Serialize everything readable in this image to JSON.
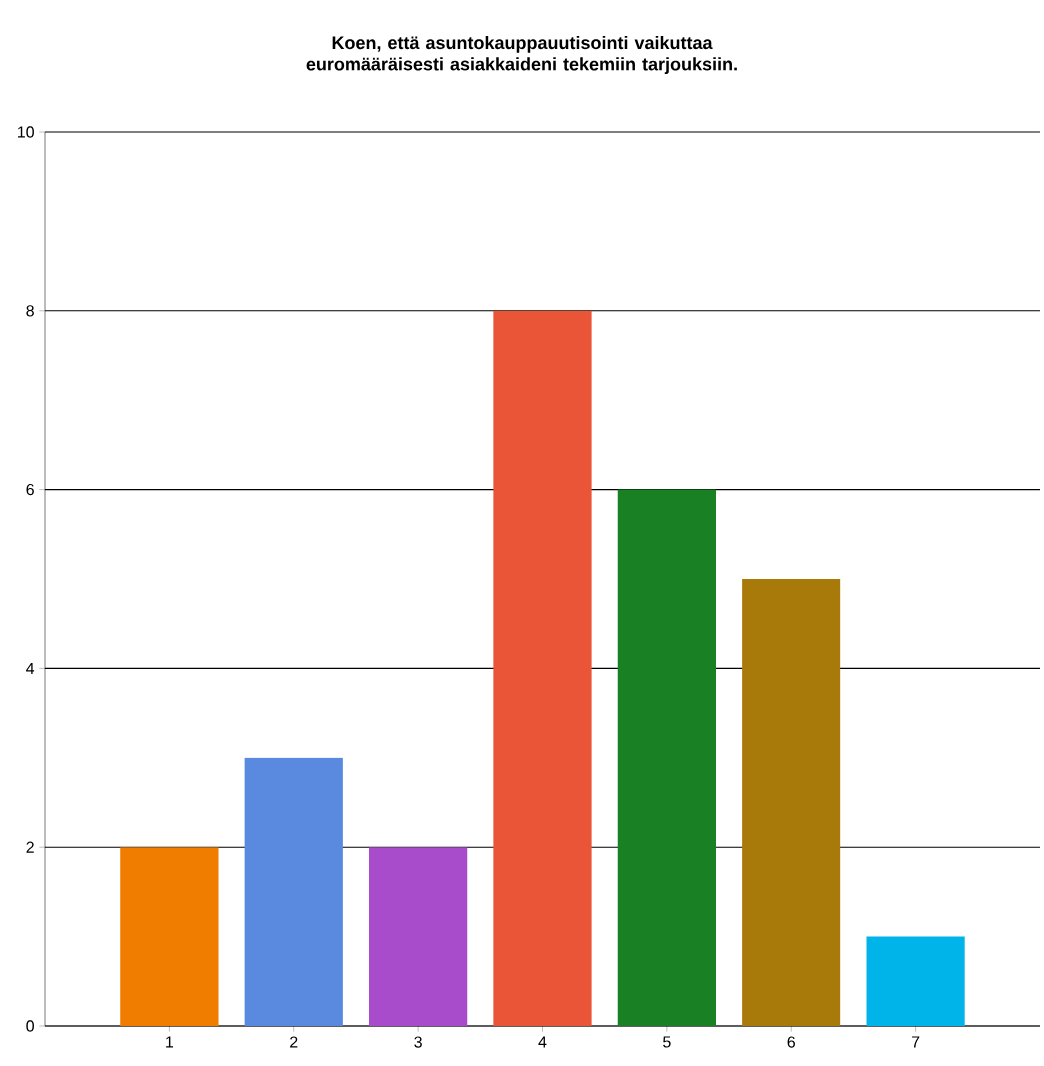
{
  "chart_data": {
    "type": "bar",
    "title": "Koen, että asuntokauppauutisointi vaikuttaa euromääräisesti asiakkaideni tekemiin tarjouksiin.",
    "categories": [
      "1",
      "2",
      "3",
      "4",
      "5",
      "6",
      "7"
    ],
    "values": [
      2,
      3,
      2,
      8,
      6,
      5,
      1
    ],
    "colors": [
      "#f07d00",
      "#5a8ae0",
      "#a84ccc",
      "#ea5538",
      "#1a8024",
      "#a87a0a",
      "#00b4ea"
    ],
    "ylim": [
      0,
      10
    ],
    "yticks": [
      0,
      2,
      4,
      6,
      8,
      10
    ],
    "grid": "y"
  }
}
